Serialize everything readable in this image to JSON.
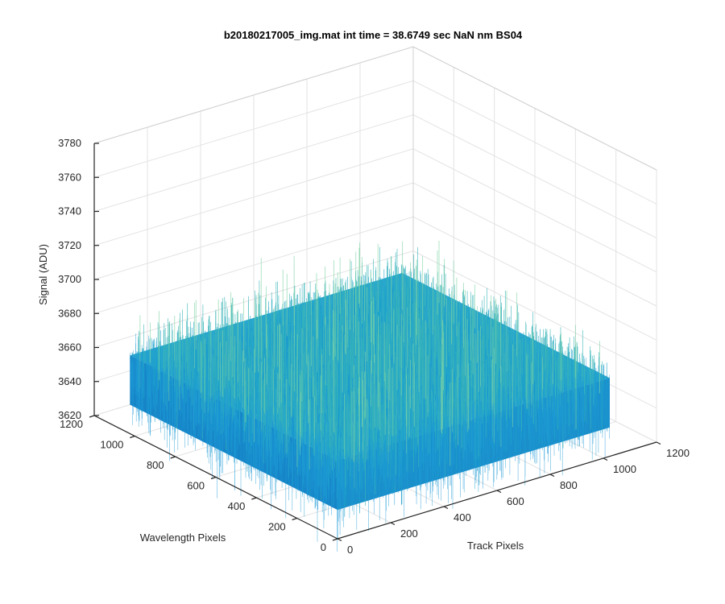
{
  "chart_data": {
    "type": "surface",
    "title": "b20180217005_img.mat int time = 38.6749 sec  NaN nm BS04",
    "xlabel": "Track Pixels",
    "ylabel": "Wavelength Pixels",
    "zlabel": "Signal (ADU)",
    "xlim": [
      0,
      1200
    ],
    "ylim": [
      0,
      1200
    ],
    "zlim": [
      3620,
      3780
    ],
    "xticks": [
      "0",
      "200",
      "400",
      "600",
      "800",
      "1000",
      "1200"
    ],
    "yticks": [
      "0",
      "200",
      "400",
      "600",
      "800",
      "1000",
      "1200"
    ],
    "zticks": [
      "3620",
      "3640",
      "3660",
      "3680",
      "3700",
      "3720",
      "3740",
      "3760",
      "3780"
    ],
    "grid": true,
    "surface": {
      "x_extent": [
        0,
        1024
      ],
      "y_extent": [
        0,
        1024
      ],
      "mean_signal": 3660,
      "signal_range": [
        3625,
        3740
      ],
      "colors": {
        "low": "#0072BD",
        "mid": "#1FA3C9",
        "high": "#7FD3A6"
      }
    }
  }
}
